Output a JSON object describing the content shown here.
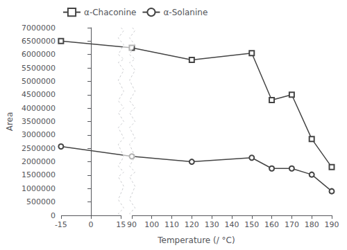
{
  "chart_data": {
    "type": "line",
    "xlabel": "Temperature (/ °C)",
    "ylabel": "Area",
    "x": [
      -15,
      90,
      120,
      150,
      160,
      170,
      180,
      190
    ],
    "series": [
      {
        "name": "α-Chaconine",
        "color": "#444444",
        "marker": "square",
        "values": [
          6500000,
          6250000,
          5800000,
          6050000,
          4300000,
          4500000,
          2850000,
          1800000
        ]
      },
      {
        "name": "α-Solanine",
        "color": "#444444",
        "marker": "circle",
        "values": [
          2570000,
          2200000,
          2000000,
          2150000,
          1750000,
          1750000,
          1520000,
          900000
        ]
      }
    ],
    "xlim": [
      -15,
      190
    ],
    "xticks": [
      -15,
      0,
      15,
      90,
      100,
      110,
      120,
      130,
      140,
      150,
      160,
      170,
      180,
      190
    ],
    "ylim": [
      0,
      7000000
    ],
    "yticks": [
      0,
      500000,
      1000000,
      1500000,
      2000000,
      2500000,
      3000000,
      3500000,
      4000000,
      4500000,
      5000000,
      5500000,
      6000000,
      6500000,
      7000000
    ],
    "grid": false,
    "legend": "upper left"
  }
}
